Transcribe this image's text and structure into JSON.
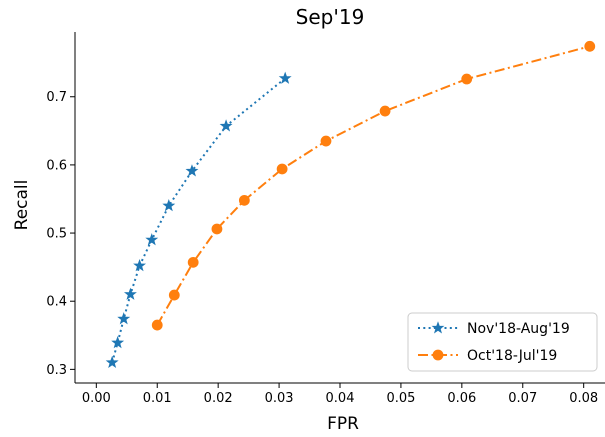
{
  "chart_data": {
    "type": "line",
    "title": "Sep'19",
    "xlabel": "FPR",
    "ylabel": "Recall",
    "xlim": [
      -0.0035,
      0.0835
    ],
    "ylim": [
      0.28,
      0.795
    ],
    "xticks": [
      0.0,
      0.01,
      0.02,
      0.03,
      0.04,
      0.05,
      0.06,
      0.07,
      0.08
    ],
    "xtick_labels": [
      "0.00",
      "0.01",
      "0.02",
      "0.03",
      "0.04",
      "0.05",
      "0.06",
      "0.07",
      "0.08"
    ],
    "yticks": [
      0.3,
      0.4,
      0.5,
      0.6,
      0.7
    ],
    "ytick_labels": [
      "0.3",
      "0.4",
      "0.5",
      "0.6",
      "0.7"
    ],
    "grid": false,
    "legend_position": "lower-right",
    "series": [
      {
        "name": "Nov'18-Aug'19",
        "color": "#1f77b4",
        "line_style": "dotted",
        "marker": "star",
        "x": [
          0.0026,
          0.0035,
          0.0045,
          0.0056,
          0.0071,
          0.0091,
          0.0119,
          0.0157,
          0.0213,
          0.031
        ],
        "y": [
          0.31,
          0.339,
          0.374,
          0.41,
          0.452,
          0.49,
          0.54,
          0.591,
          0.657,
          0.727
        ]
      },
      {
        "name": "Oct'18-Jul'19",
        "color": "#ff7f0e",
        "line_style": "dashdot",
        "marker": "circle",
        "x": [
          0.01,
          0.0128,
          0.0159,
          0.0198,
          0.0243,
          0.0305,
          0.0377,
          0.0474,
          0.0608,
          0.081
        ],
        "y": [
          0.365,
          0.409,
          0.457,
          0.506,
          0.548,
          0.594,
          0.635,
          0.679,
          0.726,
          0.774
        ]
      }
    ]
  }
}
